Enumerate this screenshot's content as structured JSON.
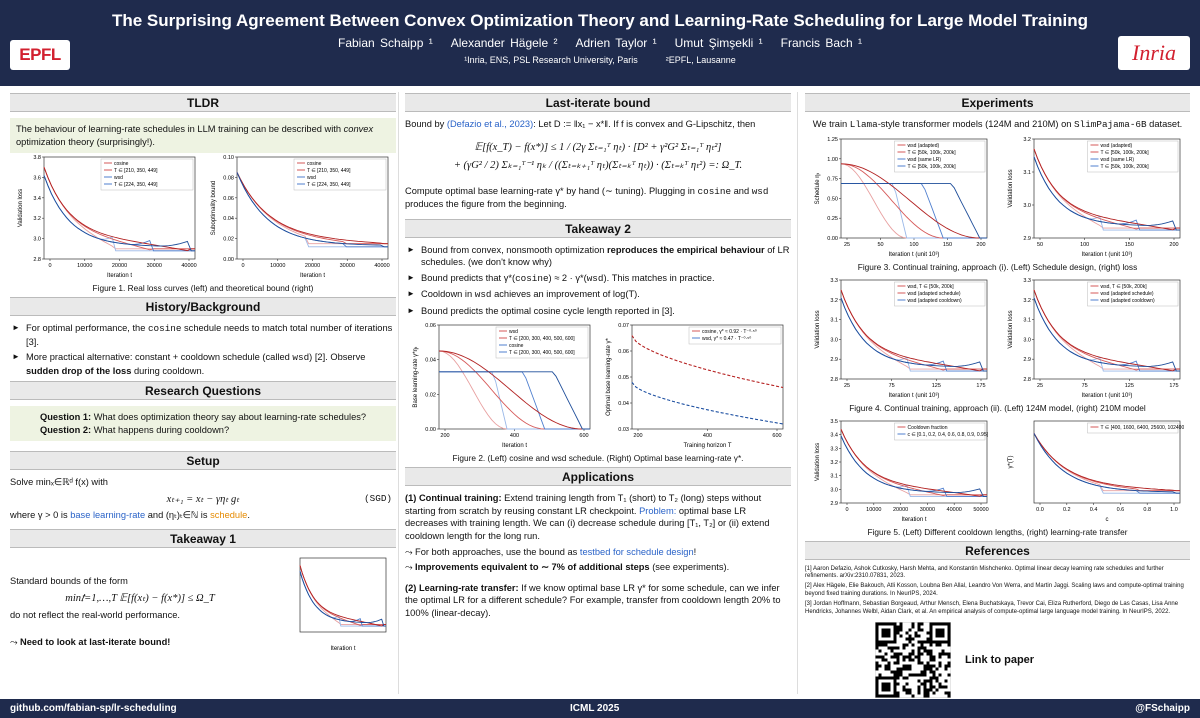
{
  "header": {
    "title": "The Surprising Agreement Between Convex Optimization Theory and Learning-Rate Scheduling for Large Model Training",
    "authors": [
      "Fabian Schaipp ¹",
      "Alexander Hägele ²",
      "Adrien Taylor ¹",
      "Umut Şimşekli ¹",
      "Francis Bach ¹"
    ],
    "affiliations": [
      "¹Inria, ENS, PSL Research University, Paris",
      "²EPFL, Lausanne"
    ],
    "logos": [
      "EPFL",
      "Inria"
    ]
  },
  "tldr": {
    "title": "TLDR",
    "text": [
      "The behaviour of learning-rate schedules in LLM training can be described with ",
      "convex",
      " optimization theory (surprisingly!)."
    ],
    "figures": [
      {
        "ylabel": "Validation loss",
        "xlabel": "Iteration t",
        "yticks": [
          "2.8",
          "3.0",
          "3.2",
          "3.4",
          "3.6",
          "3.8"
        ],
        "xticks": [
          "0",
          "10000",
          "20000",
          "30000",
          "40000"
        ],
        "legend": [
          "cosine",
          "T ∈ [210, 350, 449]",
          "wsd",
          "T ∈ [224, 350, 449]"
        ]
      },
      {
        "ylabel": "Suboptimality bound",
        "xlabel": "Iteration t",
        "yticks": [
          "0.00",
          "0.02",
          "0.04",
          "0.06",
          "0.08",
          "0.10"
        ],
        "xticks": [
          "0",
          "10000",
          "20000",
          "30000",
          "40000"
        ],
        "legend": [
          "cosine",
          "T ∈ [210, 350, 449]",
          "wsd",
          "T ∈ [224, 350, 449]"
        ]
      }
    ],
    "caption": "Figure 1. Real loss curves (left) and theoretical bound (right)"
  },
  "history": {
    "title": "History/Background",
    "bullets": [
      [
        "For optimal performance, the ",
        "cosine",
        " schedule needs to match total number of iterations [3]."
      ],
      [
        "More practical alternative: constant + cooldown schedule (called ",
        "wsd",
        ") [2]. Observe ",
        "sudden drop of the loss",
        " during cooldown."
      ]
    ]
  },
  "questions": {
    "title": "Research Questions",
    "items": [
      [
        "Question 1:",
        " What does optimization theory say about learning-rate schedules?"
      ],
      [
        "Question 2:",
        " What happens during cooldown?"
      ]
    ]
  },
  "setup": {
    "title": "Setup",
    "intro": "Solve minₓ∈ℝᵈ f(x) with",
    "equation": "xₜ₊₁ = xₜ − γηₜ gₜ",
    "tag": "(SGD)",
    "where": [
      "where γ > 0 is ",
      "base learning-rate",
      " and (ηₜ)ₜ∈ℕ is ",
      "schedule",
      "."
    ]
  },
  "takeaway1": {
    "title": "Takeaway 1",
    "intro": "Standard bounds of the form",
    "formula": "min𝑡=1,…,T 𝔼[f(xₜ) − f(x*)] ≤ Ω_T",
    "outro": "do not reflect the real-world performance.",
    "conclusion": [
      "⤳ ",
      "Need to look at last-iterate bound!"
    ],
    "figure": {
      "xlabel": "Iteration t"
    }
  },
  "last_iterate": {
    "title": "Last-iterate bound",
    "intro": [
      "Bound by ",
      "(Defazio et al., 2023)",
      ": Let D := ‖x₁ − x*‖. If f is convex and G-Lipschitz, then"
    ],
    "formula": [
      "𝔼[f(x_T) − f(x*)] ≤ 1 / (2γ Σₜ₌₁ᵀ ηₜ) · [D² + γ²G² Σₜ₌₁ᵀ ηₜ²]",
      "+ (γG² / 2) Σₖ₌₁ᵀ⁻¹ ηₖ / ((Σₜ₌ₖ₊₁ᵀ ηₜ)(Σₜ₌ₖᵀ ηₜ)) · (Σₜ₌ₖᵀ ηₜ²) =: Ω_T."
    ],
    "outro": [
      "Compute optimal base learning-rate γ* by hand (∼ tuning). Plugging in ",
      "cosine",
      " and ",
      "wsd",
      " produces the figure from the beginning."
    ]
  },
  "takeaway2": {
    "title": "Takeaway 2",
    "bullets": [
      [
        "Bound from convex, nonsmooth optimization ",
        "reproduces the empirical behaviour",
        " of LR schedules. (we don't know why)"
      ],
      [
        "Bound predicts that γ*(",
        "cosine",
        ") ≈ 2 · γ*(",
        "wsd",
        "). This matches in practice."
      ],
      [
        "Cooldown in ",
        "wsd",
        " achieves an improvement of log(T)."
      ],
      [
        "Bound predicts the optimal cosine cycle length reported in [3]."
      ]
    ],
    "figures": [
      {
        "ylabel": "Base learning-rate γ*ηₜ",
        "xlabel": "Iteration t",
        "yticks": [
          "0.00",
          "0.02",
          "0.04",
          "0.06"
        ],
        "xticks": [
          "200",
          "400",
          "600"
        ],
        "legend": [
          "wsd",
          "T ∈ [200, 300, 400, 500, 600]",
          "cosine",
          "T ∈ [200, 300, 400, 500, 600]"
        ]
      },
      {
        "ylabel": "Optimal base learning-rate γ*",
        "xlabel": "Training horizon T",
        "yticks": [
          "0.03",
          "0.04",
          "0.05",
          "0.06",
          "0.07"
        ],
        "xticks": [
          "200",
          "400",
          "600"
        ],
        "legend": [
          "cosine, γ* ≈ 0.92 · T⁻⁰·⁵⁰",
          "wsd, γ* ≈ 0.47 · T⁻⁰·⁵⁰"
        ]
      }
    ],
    "caption": "Figure 2. (Left) cosine and wsd schedule. (Right) Optimal base learning-rate γ*."
  },
  "applications": {
    "title": "Applications",
    "paragraphs": [
      [
        "(1) Continual training:",
        " Extend training length from T₁ (short) to T₂ (long) steps without starting from scratch by reusing constant LR checkpoint. ",
        "Problem:",
        " optimal base LR decreases with training length. We can (i) decrease schedule during [T₁, T₂] or (ii) extend cooldown length for the long run."
      ],
      [
        "⤳ For both approaches, use the bound as ",
        "testbed for schedule design",
        "!"
      ],
      [
        "⤳ ",
        "Improvements equivalent to ∼ 7% of additional steps",
        " (see experiments)."
      ],
      [
        "(2) Learning-rate transfer:",
        " If we know optimal base LR γ* for some schedule, can we infer the optimal LR for a different schedule? For example, transfer from cooldown length 20% to 100% (linear-decay)."
      ]
    ]
  },
  "experiments": {
    "title": "Experiments",
    "intro": [
      "We train ",
      "Llama",
      "-style transformer models (124M and 210M) on ",
      "SlimPajama-6B",
      " dataset."
    ],
    "figures": [
      {
        "ylabel": "Schedule ηₜ",
        "xlabel": "Iteration t (unit 10³)",
        "yticks": [
          "0.00",
          "0.25",
          "0.50",
          "0.75",
          "1.00",
          "1.25"
        ],
        "xticks": [
          "25",
          "50",
          "100",
          "150",
          "200"
        ],
        "legend": [
          "wsd (adapted)",
          "T ∈ [50k, 100k, 200k]",
          "wsd (same LR)",
          "T ∈ [50k, 100k, 200k]"
        ]
      },
      {
        "ylabel": "Validation loss",
        "xlabel": "Iteration t (unit 10³)",
        "yticks": [
          "2.9",
          "3.0",
          "3.1",
          "3.2"
        ],
        "xticks": [
          "50",
          "100",
          "150",
          "200"
        ],
        "legend": [
          "wsd (adapted)",
          "T ∈ [50k, 100k, 200k]",
          "wsd (same LR)",
          "T ∈ [50k, 100k, 200k]"
        ]
      },
      {
        "ylabel": "Validation loss",
        "xlabel": "Iteration t (unit 10³)",
        "yticks": [
          "2.8",
          "2.9",
          "3.0",
          "3.1",
          "3.2",
          "3.3"
        ],
        "xticks": [
          "25",
          "75",
          "125",
          "175"
        ],
        "legend": [
          "wsd, T ∈ [50k, 200k]",
          "wsd (adapted schedule)",
          "wsd (adapted cooldown)"
        ]
      },
      {
        "ylabel": "Validation loss",
        "xlabel": "Iteration t (unit 10³)",
        "yticks": [
          "2.8",
          "2.9",
          "3.0",
          "3.1",
          "3.2",
          "3.3"
        ],
        "xticks": [
          "25",
          "75",
          "125",
          "175"
        ],
        "legend": [
          "wsd, T ∈ [50k, 200k]",
          "wsd (adapted schedule)",
          "wsd (adapted cooldown)"
        ]
      },
      {
        "ylabel": "Validation loss",
        "xlabel": "Iteration t",
        "yticks": [
          "2.9",
          "3.0",
          "3.1",
          "3.2",
          "3.3",
          "3.4",
          "3.5"
        ],
        "xticks": [
          "0",
          "10000",
          "20000",
          "30000",
          "40000",
          "50000"
        ],
        "legend": [
          "Cooldown fraction",
          "c ∈ [0.1, 0.2, 0.4, 0.6, 0.8, 0.9, 0.95]"
        ]
      },
      {
        "ylabel": "γ*(T)",
        "xlabel": "c",
        "yticks": [],
        "xticks": [
          "0.0",
          "0.2",
          "0.4",
          "0.6",
          "0.8",
          "1.0"
        ],
        "legend": [
          "T ∈ [400, 1600, 6400, 25600, 102400]"
        ]
      }
    ],
    "captions": [
      "Figure 3. Continual training, approach (i). (Left) Schedule design, (right) loss",
      "Figure 4. Continual training, approach (ii). (Left) 124M model, (right) 210M model",
      "Figure 5. (Left) Different cooldown lengths, (right) learning-rate transfer"
    ]
  },
  "references": {
    "title": "References",
    "items": [
      "[1] Aaron Defazio, Ashok Cutkosky, Harsh Mehta, and Konstantin Mishchenko. Optimal linear decay learning rate schedules and further refinements. arXiv:2310.07831, 2023.",
      "[2] Alex Hägele, Elie Bakouch, Atli Kosson, Loubna Ben Allal, Leandro Von Werra, and Martin Jaggi. Scaling laws and compute-optimal training beyond fixed training durations. In NeurIPS, 2024.",
      "[3] Jordan Hoffmann, Sebastian Borgeaud, Arthur Mensch, Elena Buchatskaya, Trevor Cai, Eliza Rutherford, Diego de Las Casas, Lisa Anne Hendricks, Johannes Welbl, Aidan Clark, et al. An empirical analysis of compute-optimal large language model training. In NeurIPS, 2022."
    ],
    "link": "Link to paper"
  },
  "footer": {
    "left": "github.com/fabian-sp/lr-scheduling",
    "center": "ICML 2025",
    "right": "@FSchaipp"
  }
}
